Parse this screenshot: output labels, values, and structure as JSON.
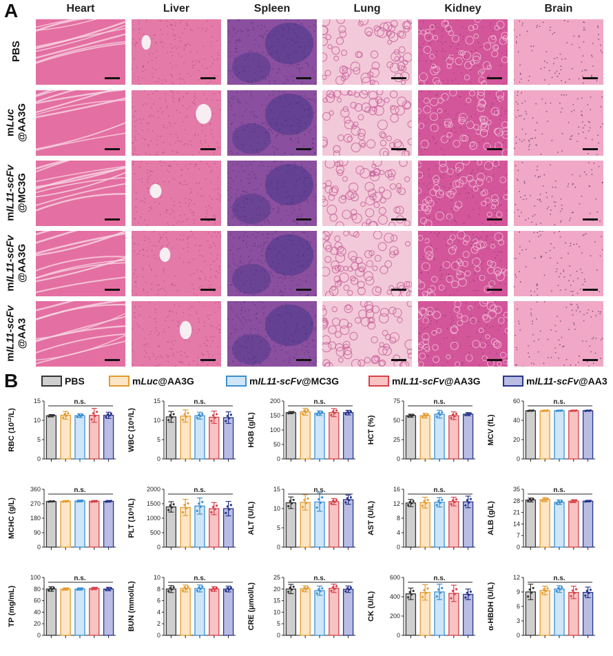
{
  "panelA": {
    "letter": "A",
    "columns": [
      "Heart",
      "Liver",
      "Spleen",
      "Lung",
      "Kidney",
      "Brain"
    ],
    "rows": [
      {
        "prefix": "PBS",
        "italic": "",
        "suffix": ""
      },
      {
        "prefix": "m",
        "italic": "Luc",
        "suffix": "@AA3G"
      },
      {
        "prefix": "m",
        "italic": "IL11-scFv",
        "suffix": "@MC3G"
      },
      {
        "prefix": "m",
        "italic": "IL11-scFv",
        "suffix": "@AA3G"
      },
      {
        "prefix": "m",
        "italic": "IL11-scFv",
        "suffix": "@AA3"
      }
    ],
    "tissue_colors": {
      "Heart": "#e46fa2",
      "Liver": "#e47aa8",
      "Spleen": "#8a4f9e",
      "Lung": "#f2c9d8",
      "Kidney": "#d3569a",
      "Brain": "#f0a8c6"
    }
  },
  "panelB": {
    "letter": "B",
    "legend": [
      {
        "prefix": "PBS",
        "italic": "",
        "suffix": "",
        "edge": "#333333",
        "fill": "#cfcfcf"
      },
      {
        "prefix": "m",
        "italic": "Luc",
        "suffix": "@AA3G",
        "edge": "#e49a2e",
        "fill": "#fde5c5"
      },
      {
        "prefix": "m",
        "italic": "IL11-scFv",
        "suffix": "@MC3G",
        "edge": "#3a8fd4",
        "fill": "#cfe6f8"
      },
      {
        "prefix": "m",
        "italic": "IL11-scFv",
        "suffix": "@AA3G",
        "edge": "#d8414a",
        "fill": "#f8c3c3"
      },
      {
        "prefix": "m",
        "italic": "IL11-scFv",
        "suffix": "@AA3",
        "edge": "#27338a",
        "fill": "#b9bde3"
      }
    ],
    "significance": "n.s."
  },
  "chart_data": [
    {
      "type": "bar",
      "ylabel": "RBC (10¹²/L)",
      "ylim": [
        0,
        15
      ],
      "ticks": [
        "0",
        "5",
        "10",
        "15"
      ],
      "values": [
        11.2,
        11.3,
        11.2,
        11.3,
        11.3
      ],
      "err": [
        0.3,
        1.0,
        0.5,
        1.8,
        0.8
      ]
    },
    {
      "type": "bar",
      "ylabel": "WBC (10⁹/L)",
      "ylim": [
        0,
        15
      ],
      "ticks": [
        "0",
        "5",
        "10",
        "15"
      ],
      "values": [
        10.9,
        11.1,
        11.2,
        10.8,
        10.7
      ],
      "err": [
        1.4,
        1.6,
        0.9,
        1.6,
        1.5
      ]
    },
    {
      "type": "bar",
      "ylabel": "HGB (g/L)",
      "ylim": [
        0,
        200
      ],
      "ticks": [
        "0",
        "50",
        "100",
        "150",
        "200"
      ],
      "values": [
        160,
        163,
        158,
        160,
        160
      ],
      "err": [
        4,
        12,
        8,
        14,
        8
      ]
    },
    {
      "type": "bar",
      "ylabel": "HCT (%)",
      "ylim": [
        0,
        75
      ],
      "ticks": [
        "0",
        "25",
        "50",
        "75"
      ],
      "values": [
        56,
        56,
        58,
        56,
        58
      ],
      "err": [
        2,
        3,
        5,
        5,
        2
      ]
    },
    {
      "type": "bar",
      "ylabel": "MCV (fL)",
      "ylim": [
        0,
        60
      ],
      "ticks": [
        "0",
        "20",
        "40",
        "60"
      ],
      "values": [
        50,
        50,
        50,
        50,
        50
      ],
      "err": [
        0.5,
        0.5,
        0.5,
        0.5,
        0.5
      ]
    },
    {
      "type": "bar",
      "ylabel": "MCHC (g/L)",
      "ylim": [
        0,
        360
      ],
      "ticks": [
        "0",
        "90",
        "180",
        "270",
        "360"
      ],
      "values": [
        284,
        285,
        287,
        285,
        285
      ],
      "err": [
        3,
        4,
        6,
        5,
        5
      ]
    },
    {
      "type": "bar",
      "ylabel": "PLT (10⁹/L)",
      "ylim": [
        0,
        2000
      ],
      "ticks": [
        "0",
        "500",
        "1000",
        "1500",
        "2000"
      ],
      "values": [
        1390,
        1370,
        1420,
        1330,
        1330
      ],
      "err": [
        180,
        280,
        280,
        210,
        250
      ]
    },
    {
      "type": "bar",
      "ylabel": "ALT (U/L)",
      "ylim": [
        0,
        15
      ],
      "ticks": [
        "0",
        "5",
        "10",
        "15"
      ],
      "values": [
        11.5,
        11.6,
        11.7,
        11.8,
        12.3
      ],
      "err": [
        1.5,
        2.0,
        2.4,
        0.8,
        1.2
      ]
    },
    {
      "type": "bar",
      "ylabel": "AST (U/L)",
      "ylim": [
        0,
        16
      ],
      "ticks": [
        "0",
        "4",
        "8",
        "12",
        "16"
      ],
      "values": [
        12.2,
        12.3,
        12.4,
        12.6,
        12.5
      ],
      "err": [
        1.0,
        1.5,
        1.3,
        1.2,
        1.6
      ]
    },
    {
      "type": "bar",
      "ylabel": "ALB (g/L)",
      "ylim": [
        0,
        35
      ],
      "ticks": [
        "0",
        "7",
        "14",
        "21",
        "28",
        "35"
      ],
      "values": [
        28.5,
        28.7,
        27.1,
        27.8,
        27.8
      ],
      "err": [
        1.2,
        1.2,
        1.4,
        0.9,
        0.5
      ]
    },
    {
      "type": "bar",
      "ylabel": "TP (mg/mL)",
      "ylim": [
        0,
        100
      ],
      "ticks": [
        "0",
        "20",
        "40",
        "60",
        "80",
        "100"
      ],
      "values": [
        80,
        80,
        80,
        81,
        80
      ],
      "err": [
        4,
        2,
        2,
        2,
        3
      ]
    },
    {
      "type": "bar",
      "ylabel": "BUN (mmol/L)",
      "ylim": [
        0,
        10
      ],
      "ticks": [
        "0",
        "2",
        "4",
        "6",
        "8",
        "10"
      ],
      "values": [
        8.0,
        8.1,
        8.1,
        8.0,
        8.0
      ],
      "err": [
        0.6,
        0.6,
        0.6,
        0.4,
        0.5
      ]
    },
    {
      "type": "bar",
      "ylabel": "CRE (μmol/L)",
      "ylim": [
        0,
        25
      ],
      "ticks": [
        "0",
        "5",
        "10",
        "15",
        "20",
        "25"
      ],
      "values": [
        20.0,
        20.1,
        19.3,
        20.3,
        19.9
      ],
      "err": [
        2.0,
        1.3,
        2.0,
        1.8,
        1.4
      ]
    },
    {
      "type": "bar",
      "ylabel": "CK (U/L)",
      "ylim": [
        0,
        600
      ],
      "ticks": [
        "0",
        "200",
        "400",
        "600"
      ],
      "values": [
        430,
        445,
        450,
        435,
        425
      ],
      "err": [
        60,
        80,
        80,
        85,
        55
      ]
    },
    {
      "type": "bar",
      "ylabel": "α-HBDH (U/L)",
      "ylim": [
        0,
        12
      ],
      "ticks": [
        "0",
        "3",
        "6",
        "9",
        "12"
      ],
      "values": [
        9.0,
        9.3,
        9.6,
        8.9,
        8.9
      ],
      "err": [
        1.6,
        0.9,
        0.7,
        1.3,
        1.1
      ]
    }
  ]
}
